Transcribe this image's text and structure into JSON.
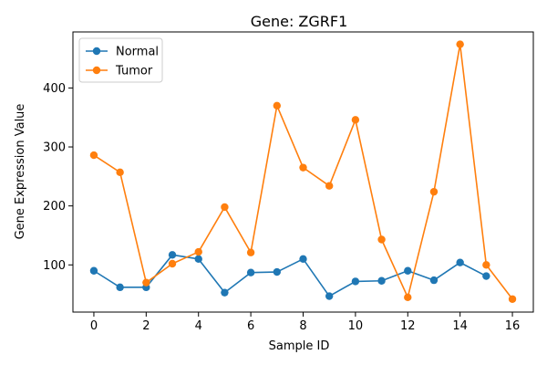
{
  "chart_data": {
    "type": "line",
    "title": "Gene: ZGRF1",
    "xlabel": "Sample ID",
    "ylabel": "Gene Expression Value",
    "xlim": [
      -0.8,
      16.8
    ],
    "ylim": [
      20,
      495
    ],
    "xticks": [
      0,
      2,
      4,
      6,
      8,
      10,
      12,
      14,
      16
    ],
    "yticks": [
      100,
      200,
      300,
      400
    ],
    "grid": false,
    "legend_position": "top-left",
    "series": [
      {
        "name": "Normal",
        "color": "#1f77b4",
        "x": [
          0,
          1,
          2,
          3,
          4,
          5,
          6,
          7,
          8,
          9,
          10,
          11,
          12,
          13,
          14,
          15
        ],
        "values": [
          90,
          62,
          62,
          117,
          110,
          53,
          87,
          88,
          110,
          47,
          72,
          73,
          90,
          74,
          104,
          81
        ]
      },
      {
        "name": "Tumor",
        "color": "#ff7f0e",
        "x": [
          0,
          1,
          2,
          3,
          4,
          5,
          6,
          7,
          8,
          9,
          10,
          11,
          12,
          13,
          14,
          15,
          16
        ],
        "values": [
          286,
          257,
          70,
          102,
          122,
          198,
          121,
          370,
          265,
          234,
          346,
          143,
          45,
          224,
          474,
          100,
          42
        ]
      }
    ]
  }
}
